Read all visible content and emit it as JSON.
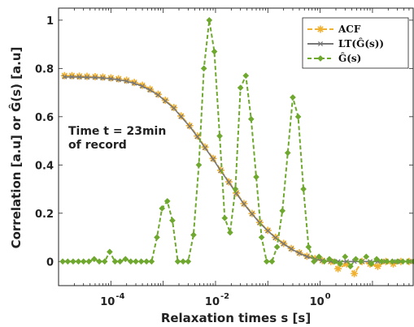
{
  "chart_data": {
    "type": "line",
    "xscale": "log",
    "xlim": [
      1e-05,
      60
    ],
    "ylim": [
      -0.1,
      1.05
    ],
    "xlabel": "Relaxation times s [s]",
    "ylabel": "Correlation [a.u] or Ĝ(s) [a.u]",
    "xticks": [
      {
        "value": 0.0001,
        "label": "10",
        "exp": "-4"
      },
      {
        "value": 0.01,
        "label": "10",
        "exp": "-2"
      },
      {
        "value": 1,
        "label": "10",
        "exp": "0"
      }
    ],
    "yticks": [
      0,
      0.2,
      0.4,
      0.6,
      0.8,
      1
    ],
    "annotation": {
      "line1": "Time t  = 23min",
      "line2": "of record"
    },
    "legend": {
      "position": "top-right"
    },
    "series": [
      {
        "name": "ACF",
        "color": "#f0b030",
        "marker": "asterisk",
        "dash": "6,3",
        "x": [
          1.3e-05,
          1.8e-05,
          2.5e-05,
          3.5e-05,
          5e-05,
          7e-05,
          0.0001,
          0.00014,
          0.0002,
          0.00028,
          0.0004,
          0.00056,
          0.0008,
          0.0011,
          0.0016,
          0.0022,
          0.0032,
          0.0045,
          0.0063,
          0.009,
          0.0126,
          0.018,
          0.025,
          0.035,
          0.05,
          0.07,
          0.1,
          0.14,
          0.2,
          0.28,
          0.4,
          0.56,
          0.8,
          1.1,
          1.6,
          2.2,
          3.2,
          4.5,
          6.3,
          9,
          12.6,
          18,
          25,
          35,
          50
        ],
        "y": [
          0.77,
          0.77,
          0.768,
          0.767,
          0.766,
          0.764,
          0.761,
          0.757,
          0.751,
          0.742,
          0.73,
          0.714,
          0.693,
          0.668,
          0.638,
          0.603,
          0.563,
          0.52,
          0.474,
          0.427,
          0.378,
          0.33,
          0.284,
          0.24,
          0.199,
          0.162,
          0.129,
          0.1,
          0.075,
          0.054,
          0.036,
          0.022,
          0.012,
          0.004,
          0.0,
          -0.03,
          -0.01,
          -0.05,
          0.0,
          -0.01,
          -0.02,
          0.0,
          -0.01,
          0.0,
          0.0
        ]
      },
      {
        "name": "LT(Ĝ(s))",
        "color": "#777777",
        "marker": "x",
        "dash": "",
        "x": [
          1.3e-05,
          1.8e-05,
          2.5e-05,
          3.5e-05,
          5e-05,
          7e-05,
          0.0001,
          0.00014,
          0.0002,
          0.00028,
          0.0004,
          0.00056,
          0.0008,
          0.0011,
          0.0016,
          0.0022,
          0.0032,
          0.0045,
          0.0063,
          0.009,
          0.0126,
          0.018,
          0.025,
          0.035,
          0.05,
          0.07,
          0.1,
          0.14,
          0.2,
          0.28,
          0.4,
          0.56,
          0.8,
          1.1,
          1.6,
          2.2,
          3.2,
          4.5,
          6.3,
          9,
          12.6,
          18,
          25,
          35,
          50
        ],
        "y": [
          0.765,
          0.765,
          0.764,
          0.763,
          0.762,
          0.76,
          0.757,
          0.753,
          0.747,
          0.738,
          0.726,
          0.71,
          0.69,
          0.665,
          0.635,
          0.6,
          0.56,
          0.517,
          0.471,
          0.424,
          0.376,
          0.328,
          0.282,
          0.238,
          0.197,
          0.16,
          0.127,
          0.098,
          0.073,
          0.052,
          0.034,
          0.02,
          0.01,
          0.004,
          0.001,
          0.0,
          0.0,
          0.0,
          0.0,
          0.0,
          0.0,
          0.0,
          0.0,
          0.0,
          0.0
        ]
      },
      {
        "name": "Ĝ(s)",
        "color": "#6fa82f",
        "marker": "diamond",
        "dash": "5,3",
        "x": [
          1.2e-05,
          1.5e-05,
          1.9e-05,
          2.4e-05,
          3e-05,
          3.8e-05,
          4.8e-05,
          6e-05,
          7.6e-05,
          9.5e-05,
          0.00012,
          0.00015,
          0.00019,
          0.00024,
          0.0003,
          0.00038,
          0.00048,
          0.0006,
          0.00076,
          0.00095,
          0.0012,
          0.0015,
          0.0019,
          0.0024,
          0.003,
          0.0038,
          0.0048,
          0.006,
          0.0076,
          0.0095,
          0.012,
          0.015,
          0.019,
          0.024,
          0.03,
          0.038,
          0.048,
          0.06,
          0.076,
          0.095,
          0.12,
          0.15,
          0.19,
          0.24,
          0.3,
          0.38,
          0.48,
          0.6,
          0.76,
          0.95,
          1.2,
          1.5,
          1.9,
          2.4,
          3,
          3.8,
          4.8,
          6,
          7.6,
          9.5,
          12,
          15,
          19,
          24,
          30,
          38,
          48,
          60
        ],
        "y": [
          0.0,
          0.0,
          0.0,
          0.0,
          0.0,
          0.0,
          0.01,
          0.0,
          0.0,
          0.04,
          0.0,
          0.0,
          0.01,
          0.0,
          0.0,
          0.0,
          0.0,
          0.0,
          0.1,
          0.22,
          0.25,
          0.17,
          0.0,
          0.0,
          0.0,
          0.11,
          0.4,
          0.8,
          1.0,
          0.87,
          0.52,
          0.18,
          0.12,
          0.3,
          0.72,
          0.77,
          0.59,
          0.35,
          0.1,
          0.0,
          0.0,
          0.06,
          0.21,
          0.45,
          0.68,
          0.6,
          0.3,
          0.06,
          0.0,
          0.02,
          0.0,
          0.01,
          0.0,
          -0.01,
          0.02,
          -0.02,
          0.01,
          0.0,
          0.02,
          -0.01,
          0.01,
          0.0,
          0.0,
          0.0,
          0.0,
          0.0,
          0.0,
          0.0
        ]
      }
    ]
  }
}
